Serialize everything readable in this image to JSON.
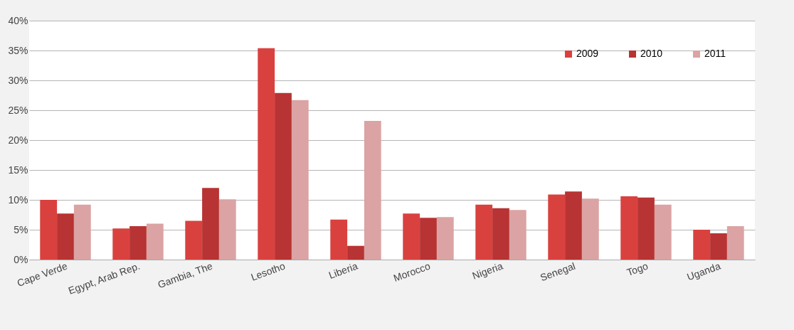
{
  "chart_data": {
    "type": "bar",
    "categories": [
      "Cape Verde",
      "Egypt, Arab Rep.",
      "Gambia, The",
      "Lesotho",
      "Liberia",
      "Morocco",
      "Nigeria",
      "Senegal",
      "Togo",
      "Uganda"
    ],
    "series": [
      {
        "name": "2009",
        "color": "#d9413f",
        "values": [
          10.0,
          5.2,
          6.5,
          35.4,
          6.7,
          7.7,
          9.2,
          10.9,
          10.6,
          5.0
        ]
      },
      {
        "name": "2010",
        "color": "#b83333",
        "values": [
          7.7,
          5.6,
          12.0,
          27.9,
          2.3,
          7.0,
          8.6,
          11.4,
          10.4,
          4.4
        ]
      },
      {
        "name": "2011",
        "color": "#dba3a3",
        "values": [
          9.2,
          6.0,
          10.1,
          26.7,
          23.2,
          7.1,
          8.3,
          10.2,
          9.2,
          5.6
        ]
      }
    ],
    "ylim": [
      0,
      40
    ],
    "yticks": [
      {
        "value": 0,
        "label": "0%"
      },
      {
        "value": 5,
        "label": "5%"
      },
      {
        "value": 10,
        "label": "10%"
      },
      {
        "value": 15,
        "label": "15%"
      },
      {
        "value": 20,
        "label": "20%"
      },
      {
        "value": 25,
        "label": "25%"
      },
      {
        "value": 30,
        "label": "30%"
      },
      {
        "value": 35,
        "label": "35%"
      },
      {
        "value": 40,
        "label": "40%"
      }
    ],
    "grid": "y",
    "legend": "top right"
  }
}
